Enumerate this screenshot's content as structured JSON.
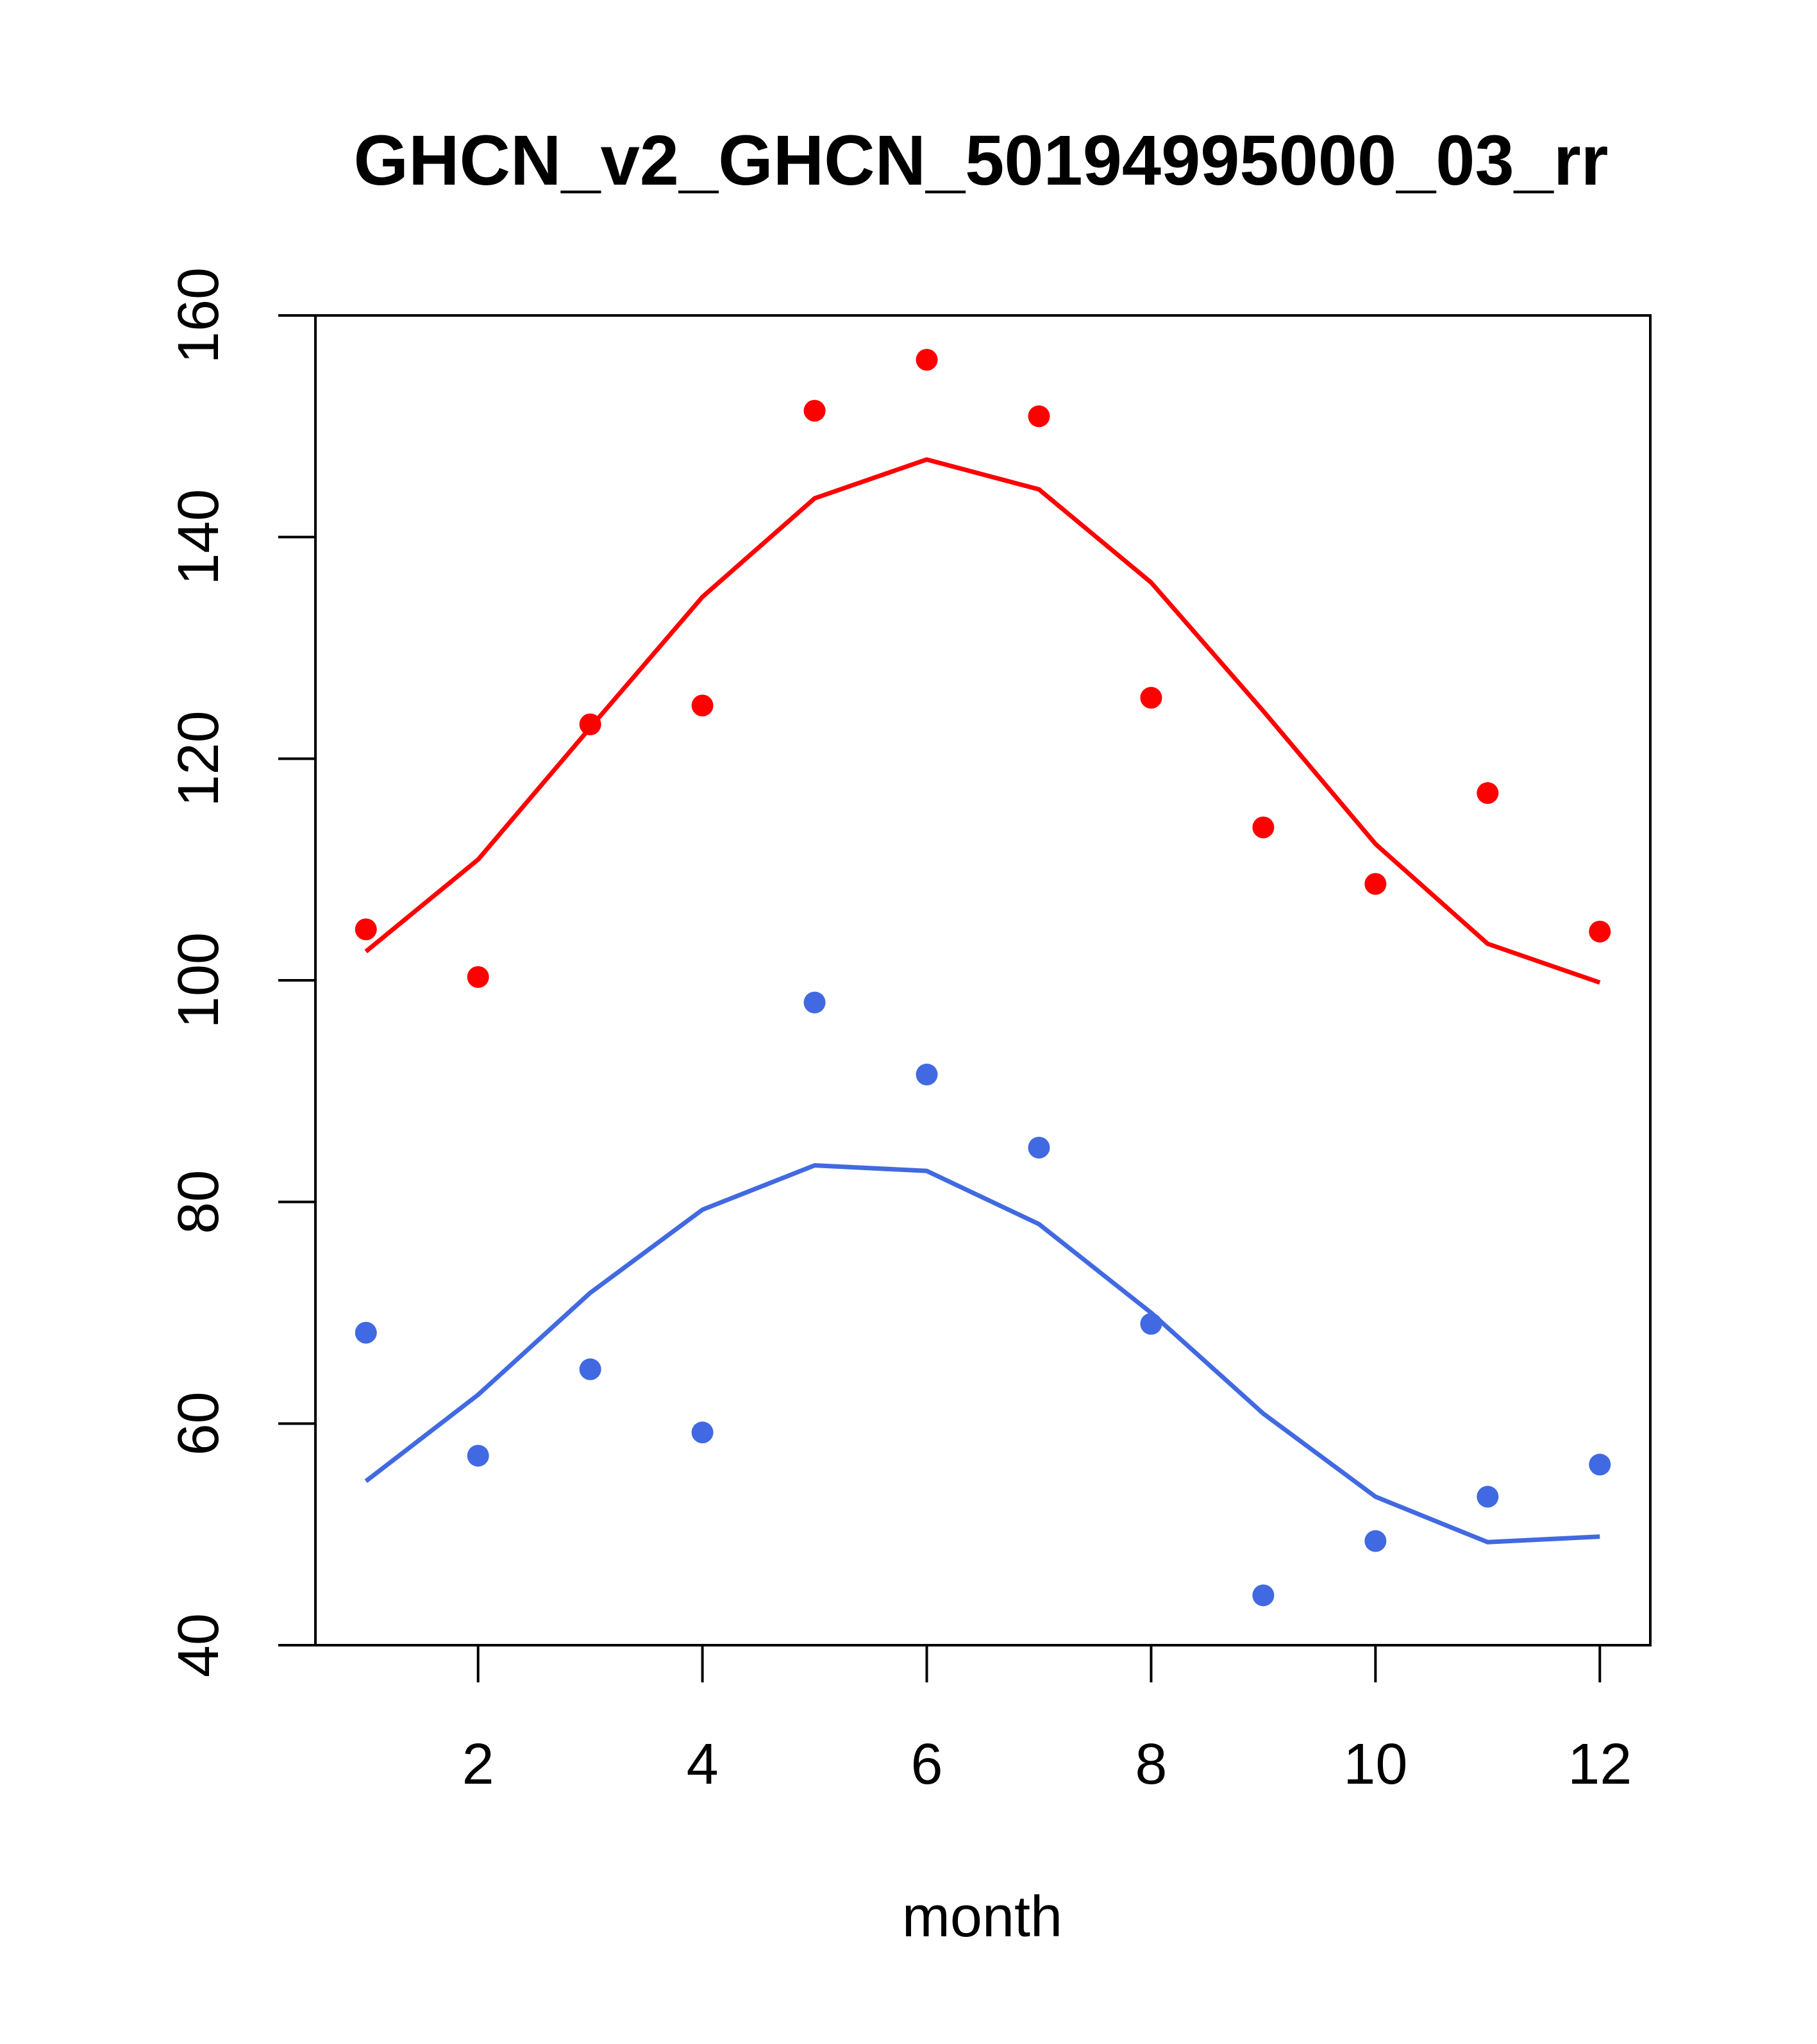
{
  "chart_data": {
    "type": "line",
    "title": "GHCN_v2_GHCN_50194995000_03_rr",
    "xlabel": "month",
    "ylabel": "",
    "xlim": [
      0.55,
      12.45
    ],
    "ylim": [
      40,
      160
    ],
    "x_ticks": [
      2,
      4,
      6,
      8,
      10,
      12
    ],
    "x_tick_labels": [
      "2",
      "4",
      "6",
      "8",
      "10",
      "12"
    ],
    "y_ticks": [
      40,
      60,
      80,
      100,
      120,
      140,
      160
    ],
    "y_tick_labels": [
      "40",
      "60",
      "80",
      "100",
      "120",
      "140",
      "160"
    ],
    "grid": false,
    "legend": "none",
    "x": [
      1,
      2,
      3,
      4,
      5,
      6,
      7,
      8,
      9,
      10,
      11,
      12
    ],
    "series": [
      {
        "color": "#ff0000",
        "points": [
          104.6,
          100.3,
          123.1,
          124.8,
          151.4,
          156.0,
          150.9,
          125.5,
          113.8,
          108.7,
          116.9,
          104.4
        ],
        "line": [
          102.6,
          110.9,
          122.8,
          134.6,
          143.5,
          147.0,
          144.3,
          135.9,
          124.3,
          112.3,
          103.3,
          99.8
        ]
      },
      {
        "color": "#4169e1",
        "points": [
          68.2,
          57.1,
          64.9,
          59.2,
          98.0,
          91.5,
          84.9,
          69.0,
          44.5,
          49.4,
          53.4,
          56.3
        ],
        "line": [
          54.8,
          62.6,
          71.8,
          79.3,
          83.3,
          82.8,
          78.0,
          70.0,
          60.9,
          53.4,
          49.3,
          49.8
        ]
      }
    ]
  }
}
